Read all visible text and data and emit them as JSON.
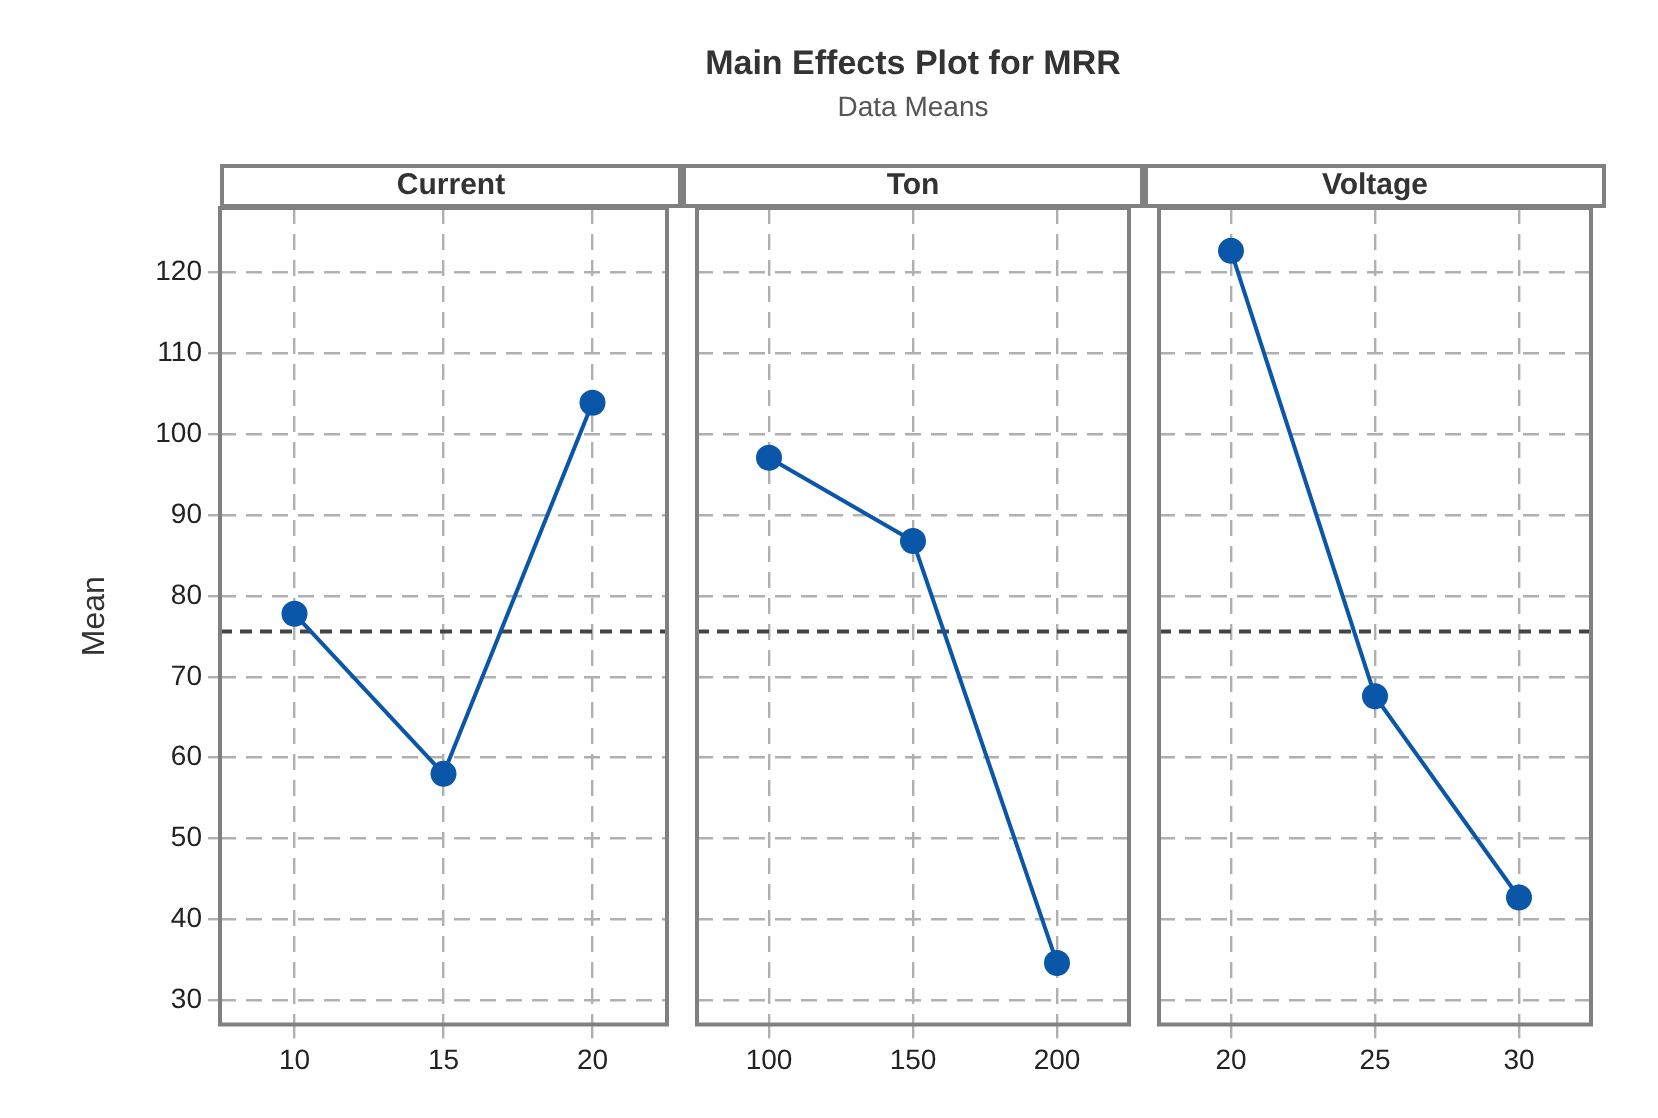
{
  "chart_data": [
    {
      "type": "line",
      "xlabel": "Current",
      "ylabel": "Mean",
      "categories": [
        "10",
        "15",
        "20"
      ],
      "values": [
        77.8,
        58.0,
        103.9
      ],
      "color": "#0a56a8",
      "ylim": [
        27,
        128
      ],
      "yticks": [
        30,
        40,
        50,
        60,
        70,
        80,
        90,
        100,
        110,
        120
      ],
      "grid": true,
      "marker": "circle",
      "ref_lines": [
        {
          "axis": "y",
          "value": 75.6
        }
      ]
    },
    {
      "type": "line",
      "title": "Main Effects Plot for MRR",
      "subtitle": "Data Means",
      "xlabel": "Ton",
      "categories": [
        "100",
        "150",
        "200"
      ],
      "values": [
        97.1,
        86.8,
        34.6
      ],
      "color": "#0a56a8",
      "ylim": [
        27,
        128
      ],
      "yticks": [
        30,
        40,
        50,
        60,
        70,
        80,
        90,
        100,
        110,
        120
      ],
      "grid": true,
      "marker": "circle",
      "ref_lines": [
        {
          "axis": "y",
          "value": 75.6
        }
      ],
      "tick_labels": "x"
    },
    {
      "type": "line",
      "xlabel": "Voltage",
      "categories": [
        "20",
        "25",
        "30"
      ],
      "values": [
        122.7,
        67.6,
        42.7
      ],
      "color": "#0a56a8",
      "ylim": [
        27,
        128
      ],
      "yticks": [
        30,
        40,
        50,
        60,
        70,
        80,
        90,
        100,
        110,
        120
      ],
      "grid": true,
      "marker": "circle",
      "ref_lines": [
        {
          "axis": "y",
          "value": 75.6
        }
      ],
      "tick_labels": "x"
    }
  ]
}
